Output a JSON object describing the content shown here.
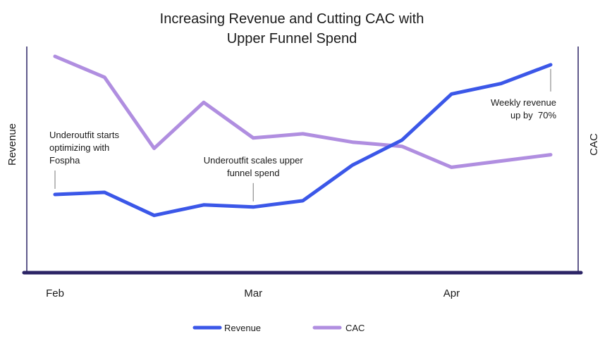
{
  "chart_data": {
    "type": "line",
    "title_lines": [
      "Increasing Revenue and Cutting CAC with",
      "Upper Funnel Spend"
    ],
    "left_axis_label": "Revenue",
    "right_axis_label": "CAC",
    "x_ticks": [
      "Feb",
      "Mar",
      "Apr"
    ],
    "x_tick_indices": [
      0,
      4,
      8
    ],
    "x_range": [
      0,
      10
    ],
    "y_range": [
      0,
      100
    ],
    "series": [
      {
        "name": "Revenue",
        "color": "#3b57e8",
        "values": [
          33,
          34,
          23,
          28,
          27,
          30,
          47,
          59,
          81,
          86,
          95
        ]
      },
      {
        "name": "CAC",
        "color": "#b08ee0",
        "values": [
          99,
          89,
          55,
          77,
          60,
          62,
          58,
          56,
          46,
          49,
          52
        ]
      }
    ],
    "annotations": [
      {
        "lines": [
          "Underoutfit starts",
          "optimizing with",
          "Fospha"
        ],
        "series": "Revenue",
        "index": 0,
        "align": "start"
      },
      {
        "lines": [
          "Underoutfit scales upper",
          "funnel spend"
        ],
        "series": "Revenue",
        "index": 4,
        "align": "middle"
      },
      {
        "lines": [
          "Weekly revenue",
          "up by  70%"
        ],
        "series": "Revenue",
        "index": 10,
        "align": "end"
      }
    ],
    "axis_color": "#2b2465"
  }
}
